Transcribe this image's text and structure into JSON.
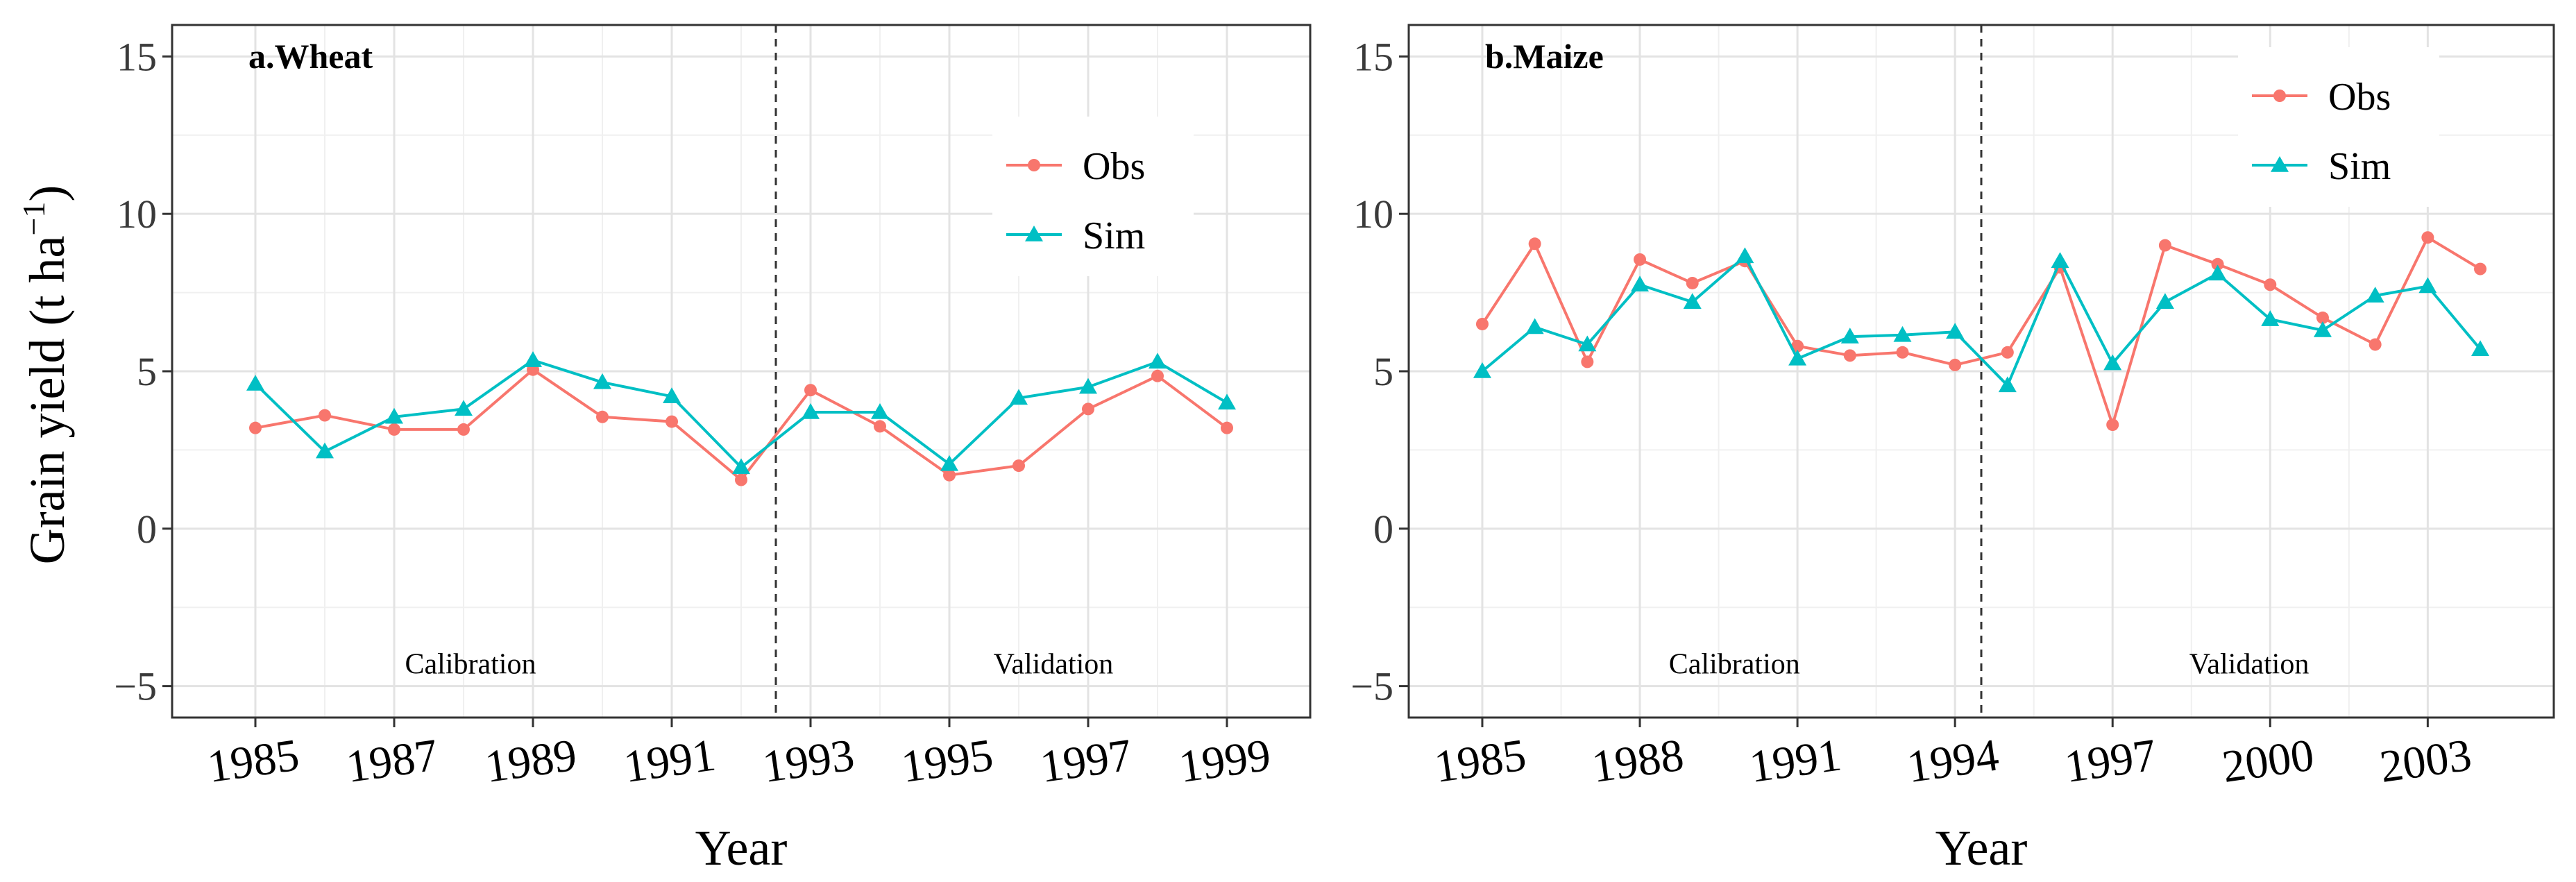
{
  "figure": {
    "ylabel_main": "Grain yield (t ha",
    "ylabel_sup": "−1",
    "ylabel_close": ")"
  },
  "chart_data": [
    {
      "type": "line",
      "title": "a.Wheat",
      "xlabel": "Year",
      "ylabel": "Grain yield (t ha−1)",
      "ylim": [
        -6,
        16
      ],
      "yticks": [
        -5,
        0,
        5,
        10,
        15
      ],
      "ytick_labels": [
        "−5",
        "0",
        "5",
        "10",
        "15"
      ],
      "xlim": [
        1983.8,
        2000.2
      ],
      "xticks": [
        1985,
        1987,
        1989,
        1991,
        1993,
        1995,
        1997,
        1999
      ],
      "xtick_labels": [
        "1985",
        "1987",
        "1989",
        "1991",
        "1993",
        "1995",
        "1997",
        "1999"
      ],
      "divider_x": 1992.5,
      "annotations": [
        {
          "text": "Calibration",
          "x": 1988.1,
          "y": -4.6
        },
        {
          "text": "Validation",
          "x": 1996.5,
          "y": -4.6
        }
      ],
      "legend": {
        "position": "right",
        "entries": [
          "Obs",
          "Sim"
        ]
      },
      "x": [
        1985,
        1986,
        1987,
        1988,
        1989,
        1990,
        1991,
        1992,
        1993,
        1994,
        1995,
        1996,
        1997,
        1998,
        1999
      ],
      "series": [
        {
          "name": "Obs",
          "color": "#F8766D",
          "marker": "circle",
          "values": [
            3.2,
            3.6,
            3.15,
            3.15,
            5.05,
            3.55,
            3.4,
            1.55,
            4.4,
            3.25,
            1.7,
            2.0,
            3.8,
            4.85,
            3.2
          ]
        },
        {
          "name": "Sim",
          "color": "#00BFC4",
          "marker": "triangle",
          "values": [
            4.6,
            2.45,
            3.55,
            3.8,
            5.35,
            4.65,
            4.2,
            1.95,
            3.7,
            3.7,
            2.05,
            4.15,
            4.5,
            5.3,
            4.0
          ]
        }
      ],
      "grid": true
    },
    {
      "type": "line",
      "title": "b.Maize",
      "xlabel": "Year",
      "ylabel": "",
      "ylim": [
        -6,
        16
      ],
      "yticks": [
        -5,
        0,
        5,
        10,
        15
      ],
      "ytick_labels": [
        "−5",
        "0",
        "5",
        "10",
        "15"
      ],
      "xlim": [
        1983.6,
        2005.4
      ],
      "xticks": [
        1985,
        1988,
        1991,
        1994,
        1997,
        2000,
        2003
      ],
      "xtick_labels": [
        "1985",
        "1988",
        "1991",
        "1994",
        "1997",
        "2000",
        "2003"
      ],
      "divider_x": 1994.5,
      "annotations": [
        {
          "text": "Calibration",
          "x": 1989.8,
          "y": -4.6
        },
        {
          "text": "Validation",
          "x": 1999.6,
          "y": -4.6
        }
      ],
      "legend": {
        "position": "top-right",
        "entries": [
          "Obs",
          "Sim"
        ]
      },
      "x": [
        1985,
        1986,
        1987,
        1988,
        1989,
        1990,
        1991,
        1992,
        1993,
        1994,
        1995,
        1996,
        1997,
        1998,
        1999,
        2000,
        2001,
        2002,
        2003,
        2004
      ],
      "series": [
        {
          "name": "Obs",
          "color": "#F8766D",
          "marker": "circle",
          "values": [
            6.5,
            9.05,
            5.3,
            8.55,
            7.8,
            8.5,
            5.8,
            5.5,
            5.6,
            5.2,
            5.6,
            8.3,
            3.3,
            9.0,
            8.4,
            7.75,
            6.7,
            5.85,
            9.25,
            8.25
          ]
        },
        {
          "name": "Sim",
          "color": "#00BFC4",
          "marker": "triangle",
          "values": [
            5.0,
            6.4,
            5.85,
            7.75,
            7.2,
            8.65,
            5.4,
            6.1,
            6.15,
            6.25,
            4.55,
            8.5,
            5.25,
            7.2,
            8.1,
            6.65,
            6.3,
            7.4,
            7.7,
            5.7
          ]
        }
      ],
      "grid": true
    }
  ]
}
